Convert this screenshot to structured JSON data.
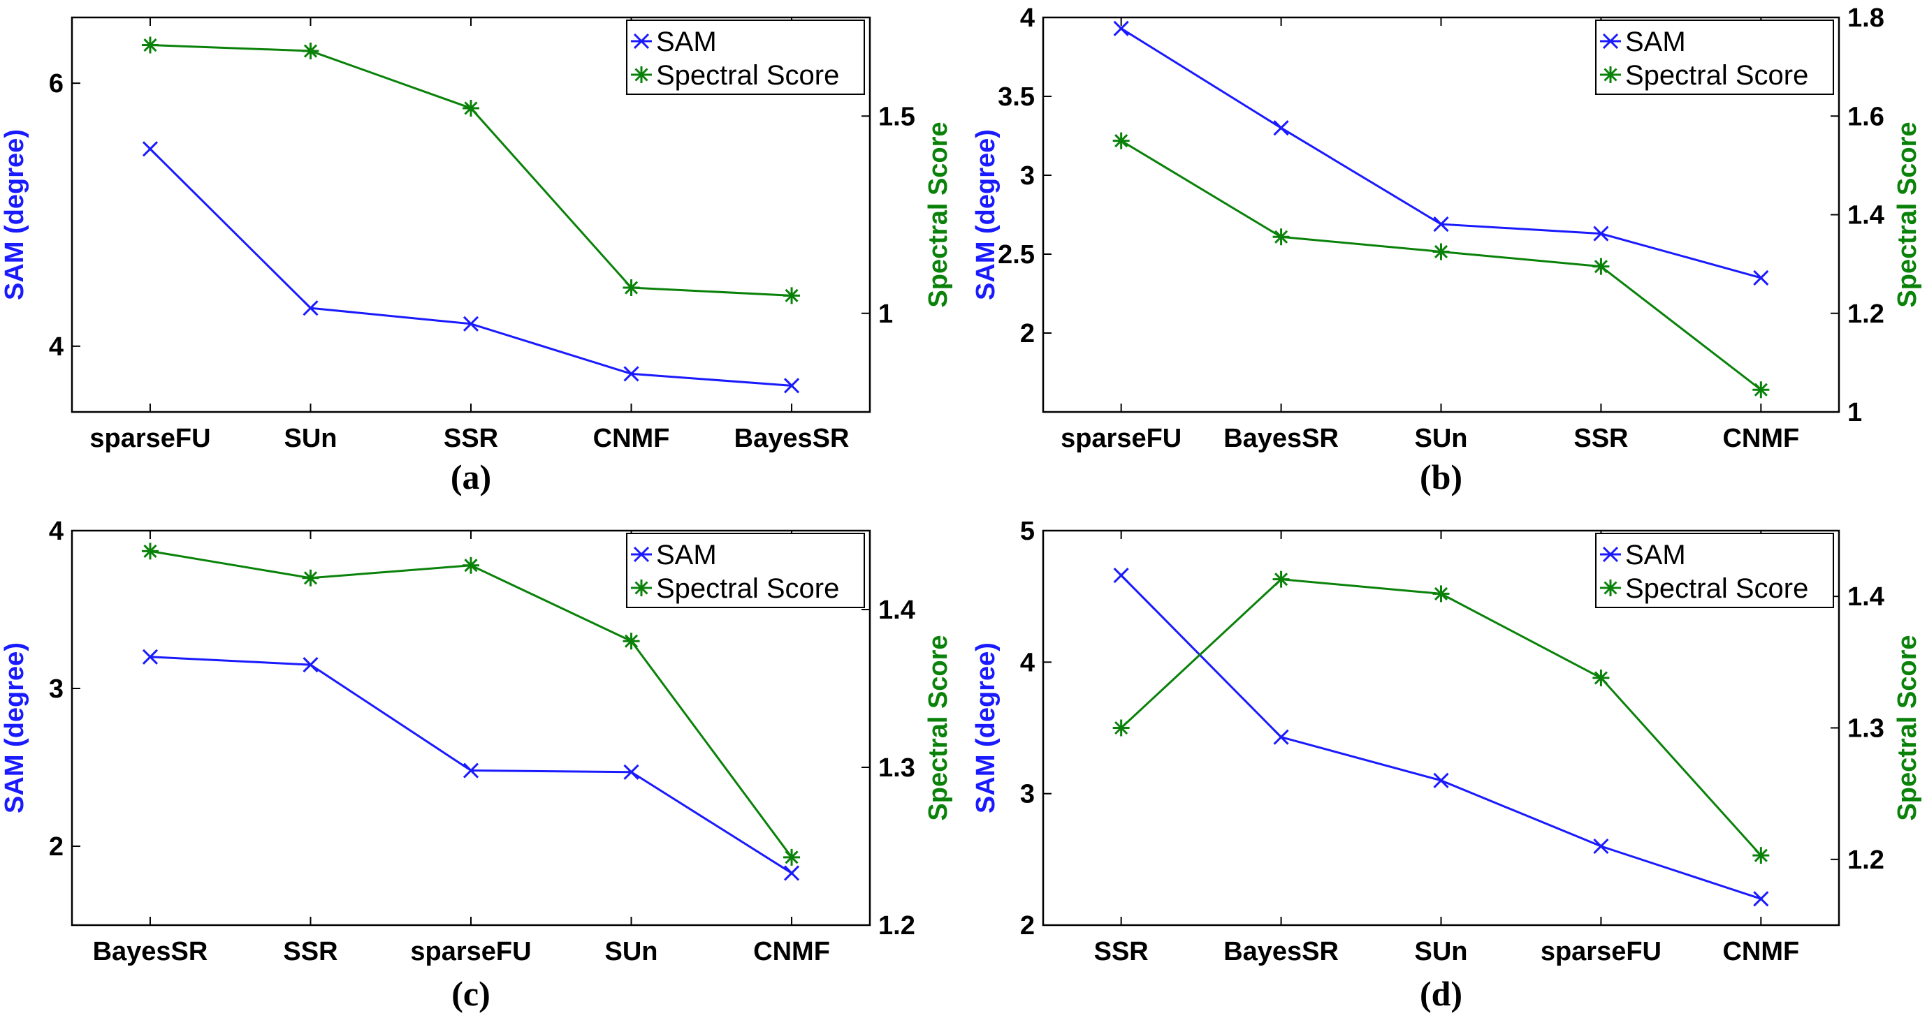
{
  "colors": {
    "sam": "#1a1aff",
    "spectral": "#0a820a",
    "axis": "#000000"
  },
  "chart_data": [
    {
      "type": "line",
      "caption": "(a)",
      "categories": [
        "sparseFU",
        "SUn",
        "SSR",
        "CNMF",
        "BayesSR"
      ],
      "ylabel": "SAM (degree)",
      "y2label": "Spectral Score",
      "ylim": [
        3.5,
        6.5
      ],
      "yticks": [
        4,
        6
      ],
      "y2lim": [
        0.75,
        1.75
      ],
      "y2ticks": [
        1,
        1.5
      ],
      "legend": {
        "position": "top-right",
        "entries": [
          "SAM",
          "Spectral Score"
        ]
      },
      "series": [
        {
          "name": "SAM",
          "axis": "left",
          "marker": "x",
          "values": [
            5.5,
            4.29,
            4.17,
            3.79,
            3.7
          ]
        },
        {
          "name": "Spectral Score",
          "axis": "right",
          "marker": "asterisk",
          "values": [
            1.68,
            1.665,
            1.52,
            1.065,
            1.045
          ]
        }
      ]
    },
    {
      "type": "line",
      "caption": "(b)",
      "categories": [
        "sparseFU",
        "BayesSR",
        "SUn",
        "SSR",
        "CNMF"
      ],
      "ylabel": "SAM (degree)",
      "y2label": "Spectral Score",
      "ylim": [
        1.5,
        4
      ],
      "yticks": [
        2,
        2.5,
        3,
        3.5,
        4
      ],
      "y2lim": [
        1,
        1.8
      ],
      "y2ticks": [
        1,
        1.2,
        1.4,
        1.6,
        1.8
      ],
      "legend": {
        "position": "top-right",
        "entries": [
          "SAM",
          "Spectral Score"
        ]
      },
      "series": [
        {
          "name": "SAM",
          "axis": "left",
          "marker": "x",
          "values": [
            3.93,
            3.3,
            2.69,
            2.63,
            2.35
          ]
        },
        {
          "name": "Spectral Score",
          "axis": "right",
          "marker": "asterisk",
          "values": [
            1.55,
            1.355,
            1.325,
            1.295,
            1.045
          ]
        }
      ]
    },
    {
      "type": "line",
      "caption": "(c)",
      "categories": [
        "BayesSR",
        "SSR",
        "sparseFU",
        "SUn",
        "CNMF"
      ],
      "ylabel": "SAM (degree)",
      "y2label": "Spectral Score",
      "ylim": [
        1.5,
        4
      ],
      "yticks": [
        2,
        3,
        4
      ],
      "y2lim": [
        1.2,
        1.45
      ],
      "y2ticks": [
        1.2,
        1.3,
        1.4
      ],
      "legend": {
        "position": "top-right",
        "entries": [
          "SAM",
          "Spectral Score"
        ]
      },
      "series": [
        {
          "name": "SAM",
          "axis": "left",
          "marker": "x",
          "values": [
            3.2,
            3.15,
            2.48,
            2.47,
            1.83
          ]
        },
        {
          "name": "Spectral Score",
          "axis": "right",
          "marker": "asterisk",
          "values": [
            1.437,
            1.42,
            1.428,
            1.38,
            1.243
          ]
        }
      ]
    },
    {
      "type": "line",
      "caption": "(d)",
      "categories": [
        "SSR",
        "BayesSR",
        "SUn",
        "sparseFU",
        "CNMF"
      ],
      "ylabel": "SAM (degree)",
      "y2label": "Spectral Score",
      "ylim": [
        2,
        5
      ],
      "yticks": [
        2,
        3,
        4,
        5
      ],
      "y2lim": [
        1.15,
        1.45
      ],
      "y2ticks": [
        1.2,
        1.3,
        1.4
      ],
      "legend": {
        "position": "top-right",
        "entries": [
          "SAM",
          "Spectral Score"
        ]
      },
      "series": [
        {
          "name": "SAM",
          "axis": "left",
          "marker": "x",
          "values": [
            4.66,
            3.43,
            3.1,
            2.6,
            2.2
          ]
        },
        {
          "name": "Spectral Score",
          "axis": "right",
          "marker": "asterisk",
          "values": [
            1.3,
            1.413,
            1.402,
            1.338,
            1.203
          ]
        }
      ]
    }
  ]
}
